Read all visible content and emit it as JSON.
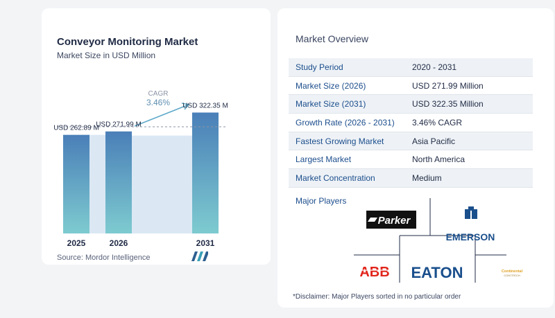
{
  "chart": {
    "title": "Conveyor Monitoring Market",
    "subtitle": "Market Size in USD Million",
    "cagr_label": "CAGR",
    "cagr_value": "3.46%",
    "source": "Source:  Mordor Intelligence"
  },
  "chart_data": {
    "type": "bar",
    "categories": [
      "2025",
      "2026",
      "2031"
    ],
    "values": [
      262.89,
      271.99,
      322.35
    ],
    "data_labels": [
      "USD 262.89 M",
      "USD 271.99 M",
      "USD 322.35 M"
    ],
    "title": "Conveyor Monitoring Market",
    "subtitle": "Market Size in USD Million",
    "xlabel": "",
    "ylabel": "",
    "grid": false,
    "colors": {
      "bar_top": "#4a7fb8",
      "bar_bottom": "#7ecbd0",
      "band": "#dbe8f4"
    }
  },
  "overview": {
    "title": "Market Overview",
    "rows": [
      {
        "label": "Study Period",
        "value": "2020 - 2031"
      },
      {
        "label": "Market Size (2026)",
        "value": "USD 271.99 Million"
      },
      {
        "label": "Market Size (2031)",
        "value": "USD 322.35 Million"
      },
      {
        "label": "Growth Rate (2026 - 2031)",
        "value": "3.46% CAGR"
      },
      {
        "label": "Fastest Growing Market",
        "value": "Asia Pacific"
      },
      {
        "label": "Largest Market",
        "value": "North America"
      },
      {
        "label": "Market Concentration",
        "value": "Medium"
      }
    ],
    "players_title": "Major Players",
    "players": [
      "Parker",
      "EMERSON",
      "ABB",
      "EATON",
      "Continental"
    ],
    "disclaimer": "*Disclaimer: Major Players sorted in no particular order"
  }
}
